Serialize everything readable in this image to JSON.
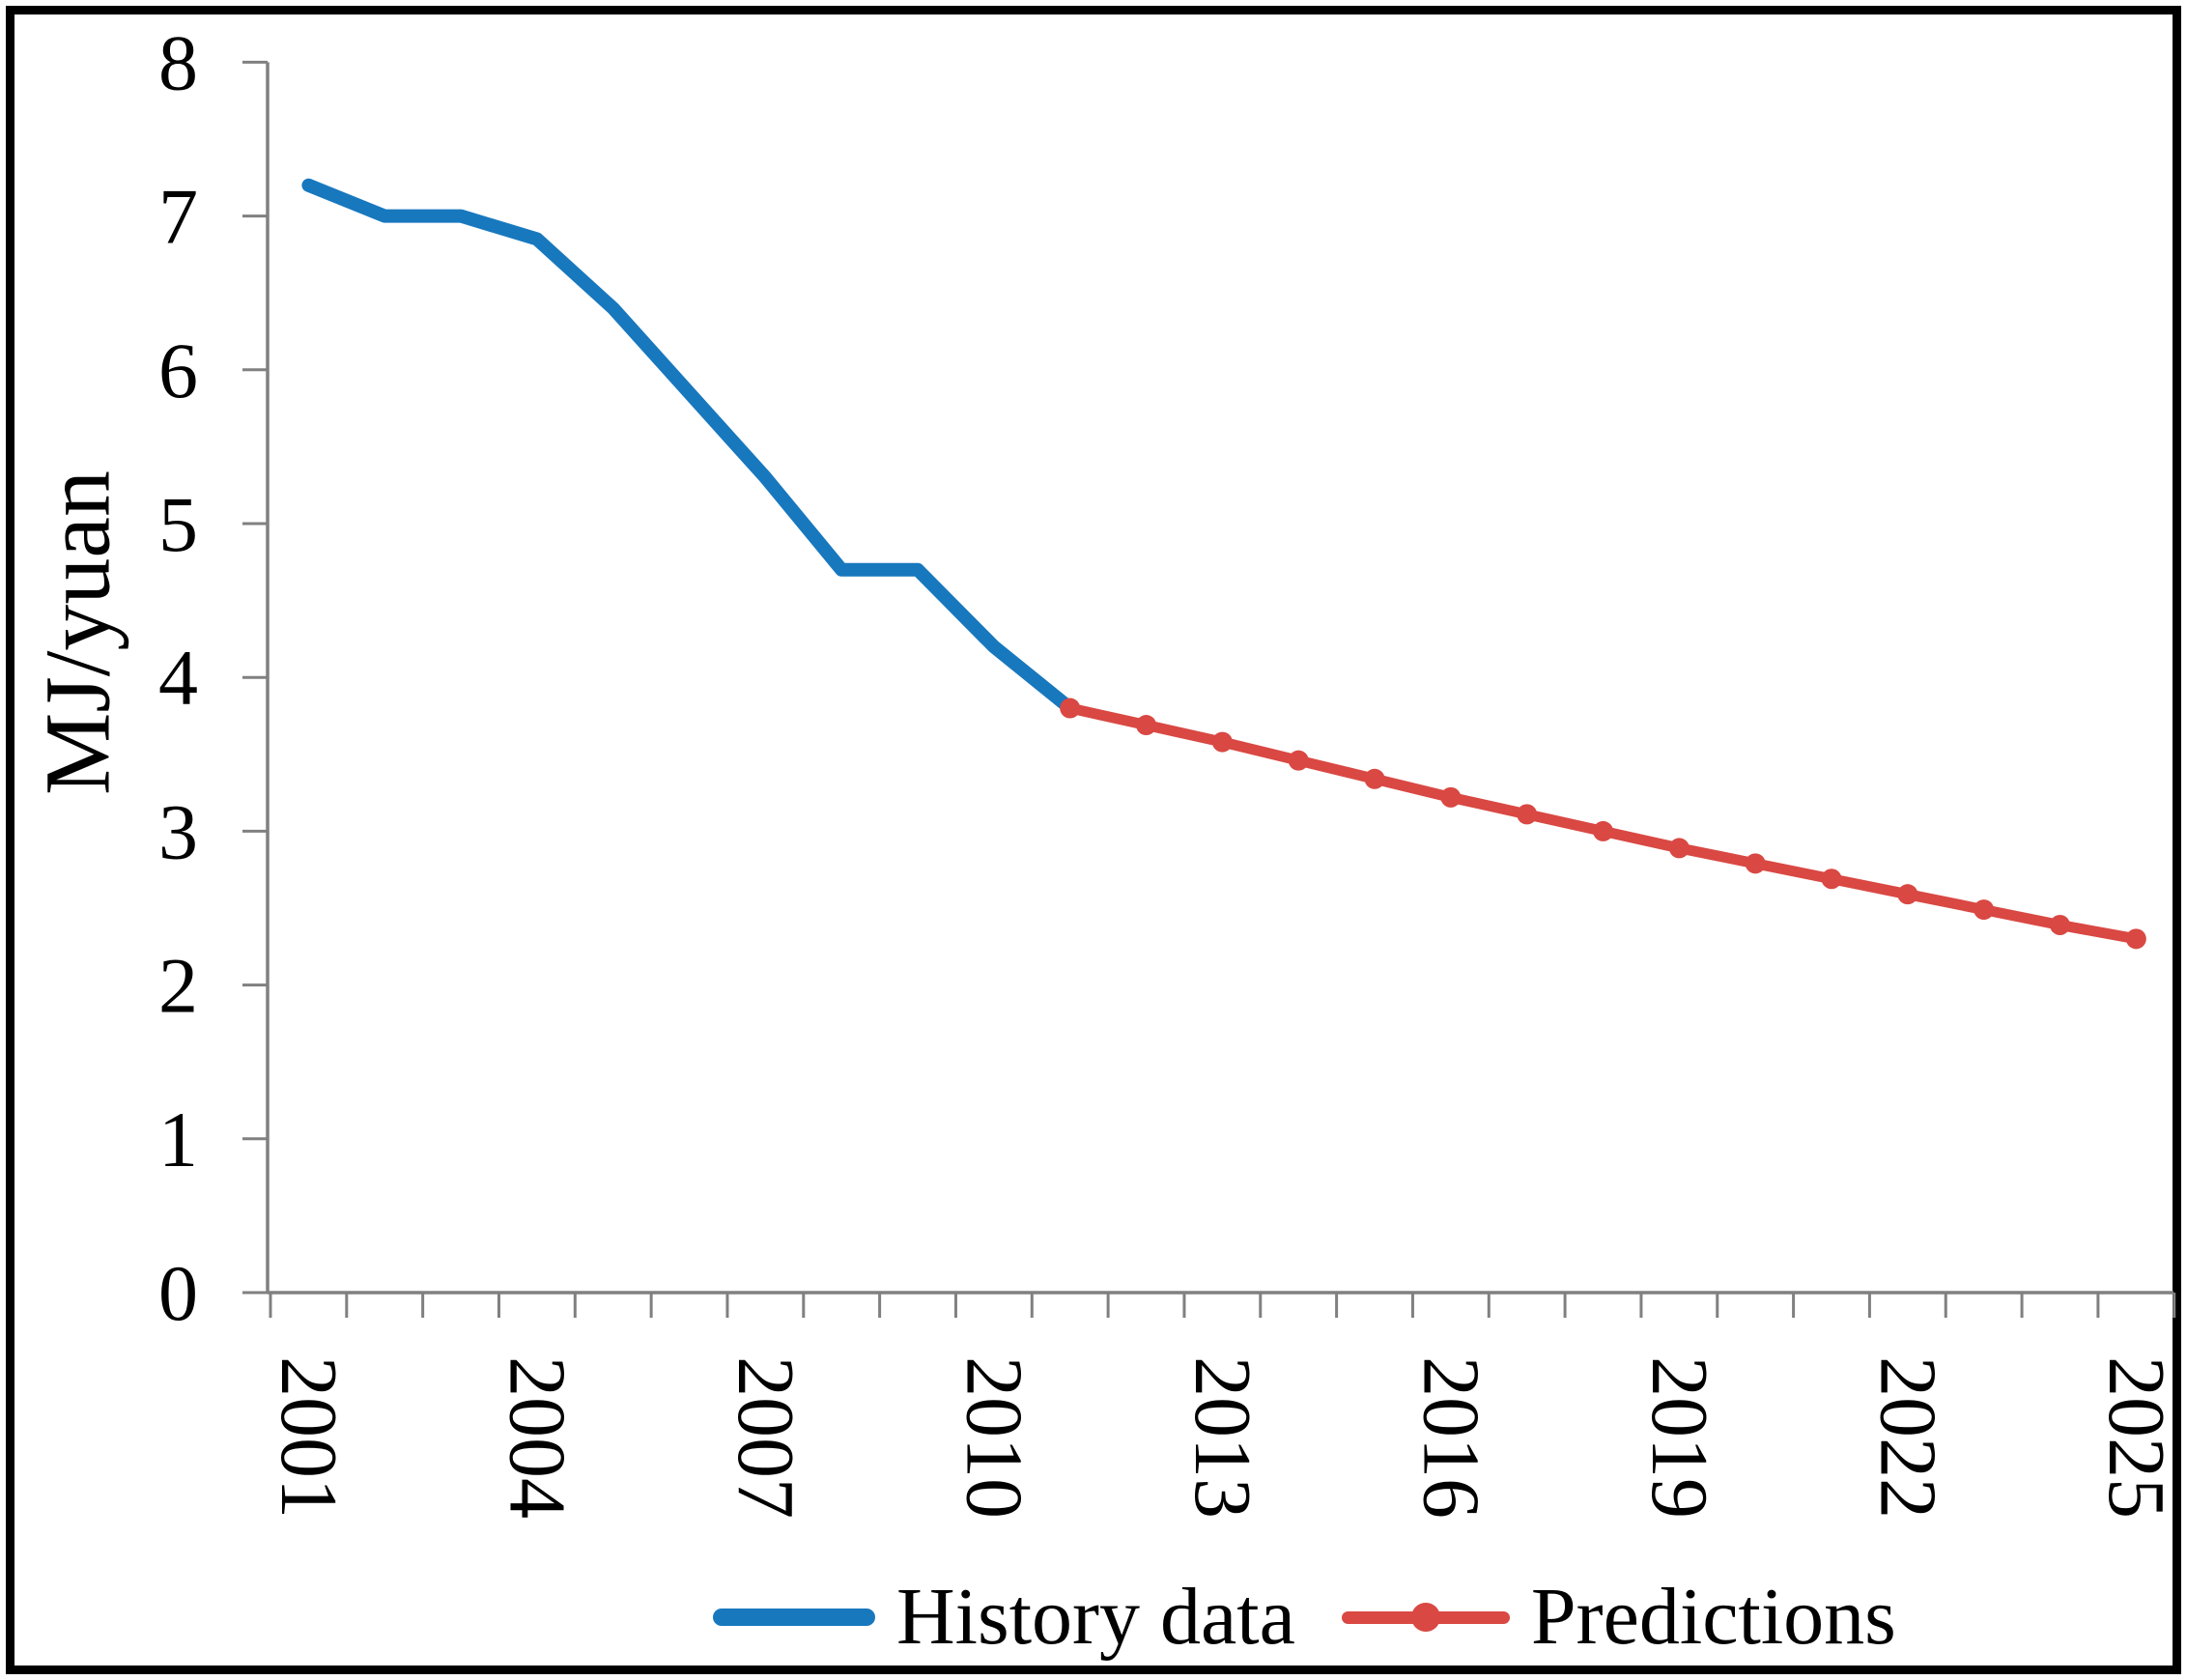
{
  "figure": {
    "background": "#ffffff",
    "frame_color": "#000000",
    "axis_color": "#808080",
    "text_color": "#000000"
  },
  "y_axis": {
    "title": "MJ/yuan",
    "min": 0,
    "max": 8,
    "tick_labels": [
      "0",
      "1",
      "2",
      "3",
      "4",
      "5",
      "6",
      "7",
      "8"
    ]
  },
  "x_axis": {
    "year_start": 2001,
    "year_end": 2025,
    "labeled_years": [
      "2001",
      "2004",
      "2007",
      "2010",
      "2013",
      "2016",
      "2019",
      "2022",
      "2025"
    ]
  },
  "legend": {
    "history_label": "History data",
    "predictions_label": "Predictions",
    "history_color": "#1878BE",
    "predictions_color": "#D94843"
  },
  "chart_data": {
    "type": "line",
    "title": "",
    "xlabel": "",
    "ylabel": "MJ/yuan",
    "ylim": [
      0,
      8
    ],
    "xlim": [
      2001,
      2025
    ],
    "grid": false,
    "legend_position": "bottom",
    "x_tick_step_years": 3,
    "series": [
      {
        "name": "History data",
        "color": "#1878BE",
        "marker": "none",
        "years": [
          2001,
          2002,
          2003,
          2004,
          2005,
          2006,
          2007,
          2008,
          2009,
          2010,
          2011
        ],
        "values": [
          7.2,
          7.0,
          7.0,
          6.85,
          6.4,
          5.85,
          5.3,
          4.7,
          4.7,
          4.2,
          3.8
        ]
      },
      {
        "name": "Predictions",
        "color": "#D94843",
        "marker": "circle",
        "years": [
          2011,
          2012,
          2013,
          2014,
          2015,
          2016,
          2017,
          2018,
          2019,
          2020,
          2021,
          2022,
          2023,
          2024,
          2025
        ],
        "values": [
          3.8,
          3.69,
          3.58,
          3.46,
          3.34,
          3.22,
          3.11,
          3.0,
          2.89,
          2.79,
          2.69,
          2.59,
          2.49,
          2.39,
          2.3
        ]
      }
    ]
  }
}
